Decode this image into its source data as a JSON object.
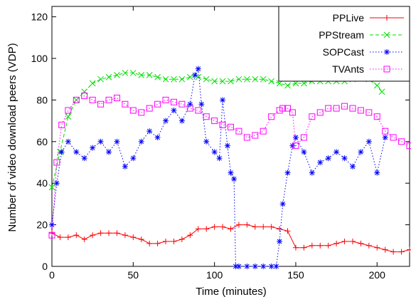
{
  "chart_data": {
    "type": "line",
    "title": "",
    "xlabel": "Time (minutes)",
    "ylabel": "Number of video download peers (VDP)",
    "xlim": [
      0,
      220
    ],
    "ylim": [
      0,
      125
    ],
    "xticks": [
      0,
      50,
      100,
      150,
      200
    ],
    "yticks": [
      0,
      20,
      40,
      60,
      80,
      100,
      120
    ],
    "grid": false,
    "legend_position": "top-right",
    "series": [
      {
        "name": "PPLive",
        "color": "#ff0000",
        "marker": "plus",
        "line_style": "solid",
        "x": [
          0,
          5,
          10,
          15,
          20,
          25,
          30,
          35,
          40,
          45,
          50,
          55,
          60,
          65,
          70,
          75,
          80,
          85,
          90,
          95,
          100,
          105,
          110,
          115,
          120,
          125,
          130,
          135,
          140,
          145,
          150,
          155,
          160,
          165,
          170,
          175,
          180,
          185,
          190,
          195,
          200,
          205,
          210,
          215,
          220
        ],
        "y": [
          16,
          14,
          14,
          15,
          13,
          15,
          16,
          16,
          16,
          15,
          14,
          13,
          11,
          11,
          12,
          12,
          13,
          15,
          18,
          18,
          19,
          19,
          18,
          20,
          20,
          19,
          19,
          19,
          18,
          17,
          9,
          9,
          10,
          10,
          10,
          11,
          12,
          12,
          11,
          10,
          9,
          8,
          7,
          7,
          8
        ]
      },
      {
        "name": "PPStream",
        "color": "#00dd00",
        "marker": "x",
        "line_style": "dashed",
        "x": [
          0,
          5,
          10,
          15,
          20,
          25,
          30,
          35,
          40,
          45,
          50,
          55,
          60,
          65,
          70,
          75,
          80,
          85,
          90,
          95,
          100,
          105,
          110,
          115,
          120,
          125,
          130,
          135,
          140,
          145,
          150,
          155,
          160,
          165,
          170,
          175,
          180,
          185,
          190,
          195,
          200,
          203
        ],
        "y": [
          38,
          55,
          72,
          80,
          84,
          88,
          90,
          91,
          92,
          93,
          93,
          92,
          92,
          91,
          90,
          90,
          90,
          91,
          91,
          90,
          89,
          89,
          89,
          90,
          90,
          90,
          90,
          89,
          88,
          87,
          88,
          88,
          89,
          89,
          89,
          89,
          89,
          90,
          91,
          90,
          87,
          84
        ]
      },
      {
        "name": "SOPCast",
        "color": "#0000ff",
        "marker": "asterisk",
        "line_style": "dotted",
        "x": [
          0,
          3,
          6,
          10,
          15,
          20,
          25,
          30,
          35,
          40,
          45,
          50,
          55,
          60,
          65,
          70,
          75,
          80,
          85,
          88,
          90,
          92,
          95,
          100,
          103,
          105,
          108,
          110,
          112,
          113,
          115,
          120,
          125,
          130,
          135,
          138,
          140,
          142,
          145,
          148,
          150,
          155,
          160,
          165,
          170,
          175,
          180,
          185,
          190,
          195,
          200,
          205
        ],
        "y": [
          20,
          40,
          55,
          60,
          55,
          52,
          57,
          60,
          55,
          60,
          48,
          52,
          60,
          65,
          62,
          70,
          75,
          70,
          78,
          92,
          95,
          78,
          60,
          55,
          52,
          80,
          58,
          45,
          42,
          0,
          0,
          0,
          0,
          0,
          0,
          0,
          12,
          30,
          45,
          58,
          62,
          55,
          45,
          50,
          52,
          55,
          52,
          48,
          55,
          60,
          45,
          62
        ]
      },
      {
        "name": "TVAnts",
        "color": "#ff00ff",
        "marker": "square",
        "line_style": "dotted",
        "x": [
          0,
          3,
          6,
          10,
          15,
          20,
          25,
          30,
          35,
          40,
          45,
          50,
          55,
          60,
          65,
          70,
          75,
          80,
          85,
          90,
          95,
          100,
          105,
          110,
          115,
          120,
          125,
          130,
          135,
          140,
          142,
          145,
          148,
          150,
          155,
          160,
          165,
          170,
          175,
          180,
          185,
          190,
          195,
          200,
          205,
          210,
          215,
          220
        ],
        "y": [
          15,
          50,
          68,
          75,
          80,
          82,
          80,
          78,
          80,
          81,
          78,
          75,
          74,
          76,
          78,
          80,
          79,
          78,
          76,
          75,
          72,
          70,
          68,
          67,
          65,
          62,
          63,
          65,
          72,
          75,
          76,
          76,
          74,
          58,
          62,
          72,
          74,
          76,
          76,
          77,
          76,
          75,
          74,
          72,
          65,
          62,
          60,
          58
        ]
      }
    ]
  }
}
